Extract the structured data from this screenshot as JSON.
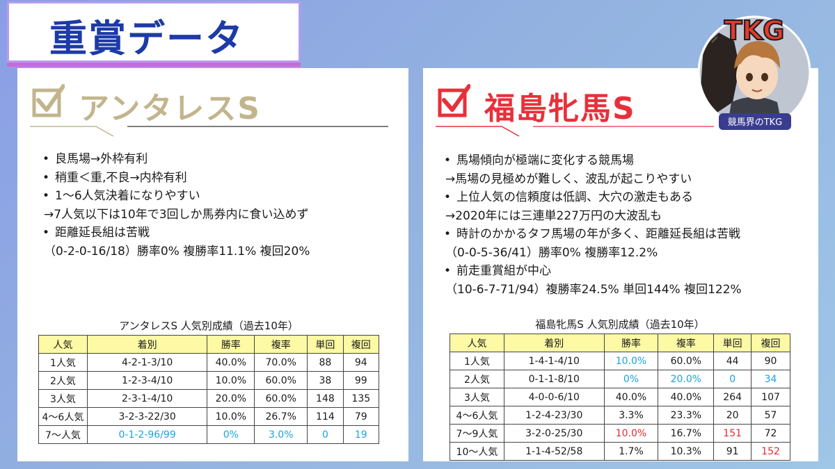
{
  "banner": {
    "title": "重賞データ"
  },
  "left": {
    "race_title": "アンタレスS",
    "points": [
      {
        "bullet": true,
        "text": "良馬場→外枠有利"
      },
      {
        "bullet": true,
        "text": "稍重＜重,不良→内枠有利"
      },
      {
        "bullet": true,
        "text": "1～6人気決着になりやすい"
      },
      {
        "bullet": false,
        "text": "→7人気以下は10年で3回しか馬券内に食い込めず"
      },
      {
        "bullet": true,
        "text": "距離延長組は苦戦"
      },
      {
        "bullet": false,
        "text": "（0-2-0-16/18）勝率0%  複勝率11.1%  複回20%"
      }
    ],
    "table_caption": "アンタレスS  人気別成績（過去10年）",
    "table_headers": [
      "人気",
      "着別",
      "勝率",
      "複率",
      "単回",
      "複回"
    ],
    "table_rows": [
      [
        "1人気",
        "4-2-1-3/10",
        "40.0%",
        "70.0%",
        "88",
        "94"
      ],
      [
        "2人気",
        "1-2-3-4/10",
        "10.0%",
        "60.0%",
        "38",
        "99"
      ],
      [
        "3人気",
        "2-3-1-4/10",
        "20.0%",
        "60.0%",
        "148",
        "135"
      ],
      [
        "4～6人気",
        "3-2-3-22/30",
        "10.0%",
        "26.7%",
        "114",
        "79"
      ],
      [
        "7～人気",
        "0-1-2-96/99",
        "0%",
        "3.0%",
        "0",
        "19"
      ]
    ]
  },
  "right": {
    "race_title": "福島牝馬S",
    "points": [
      {
        "bullet": true,
        "text": "馬場傾向が極端に変化する競馬場"
      },
      {
        "bullet": false,
        "text": "→馬場の見極めが難しく、波乱が起こりやすい"
      },
      {
        "bullet": true,
        "text": "上位人気の信頼度は低調、大穴の激走もある"
      },
      {
        "bullet": false,
        "text": "→2020年には三連単227万円の大波乱も"
      },
      {
        "bullet": true,
        "text": "時計のかかるタフ馬場の年が多く、距離延長組は苦戦"
      },
      {
        "bullet": false,
        "text": "（0-0-5-36/41）勝率0%  複勝率12.2%"
      },
      {
        "bullet": true,
        "text": "前走重賞組が中心"
      },
      {
        "bullet": false,
        "text": "（10-6-7-71/94）複勝率24.5%  単回144%  複回122%"
      }
    ],
    "table_caption": "福島牝馬S    人気別成績（過去10年）",
    "table_headers": [
      "人気",
      "着別",
      "勝率",
      "複率",
      "単回",
      "複回"
    ],
    "table_rows": [
      [
        "1人気",
        "1-4-1-4/10",
        "10.0%",
        "60.0%",
        "44",
        "90"
      ],
      [
        "2人気",
        "0-1-1-8/10",
        "0%",
        "20.0%",
        "0",
        "34"
      ],
      [
        "3人気",
        "4-0-0-6/10",
        "40.0%",
        "40.0%",
        "264",
        "107"
      ],
      [
        "4～6人気",
        "1-2-4-23/30",
        "3.3%",
        "23.3%",
        "20",
        "57"
      ],
      [
        "7～9人気",
        "3-2-0-25/30",
        "10.0%",
        "16.7%",
        "151",
        "72"
      ],
      [
        "10～人気",
        "1-1-4-52/58",
        "1.7%",
        "10.3%",
        "91",
        "152"
      ]
    ]
  },
  "avatar": {
    "logo": "TKG",
    "caption": "競馬界のTKG"
  },
  "colors": {
    "banner_text": "#1d3aa8",
    "gold_title": "#c2b58d",
    "red_title": "#e8303a",
    "table_header_bg": "#fdf9a4",
    "highlight_blue": "#1aa3e0",
    "highlight_red": "#e02b30"
  }
}
